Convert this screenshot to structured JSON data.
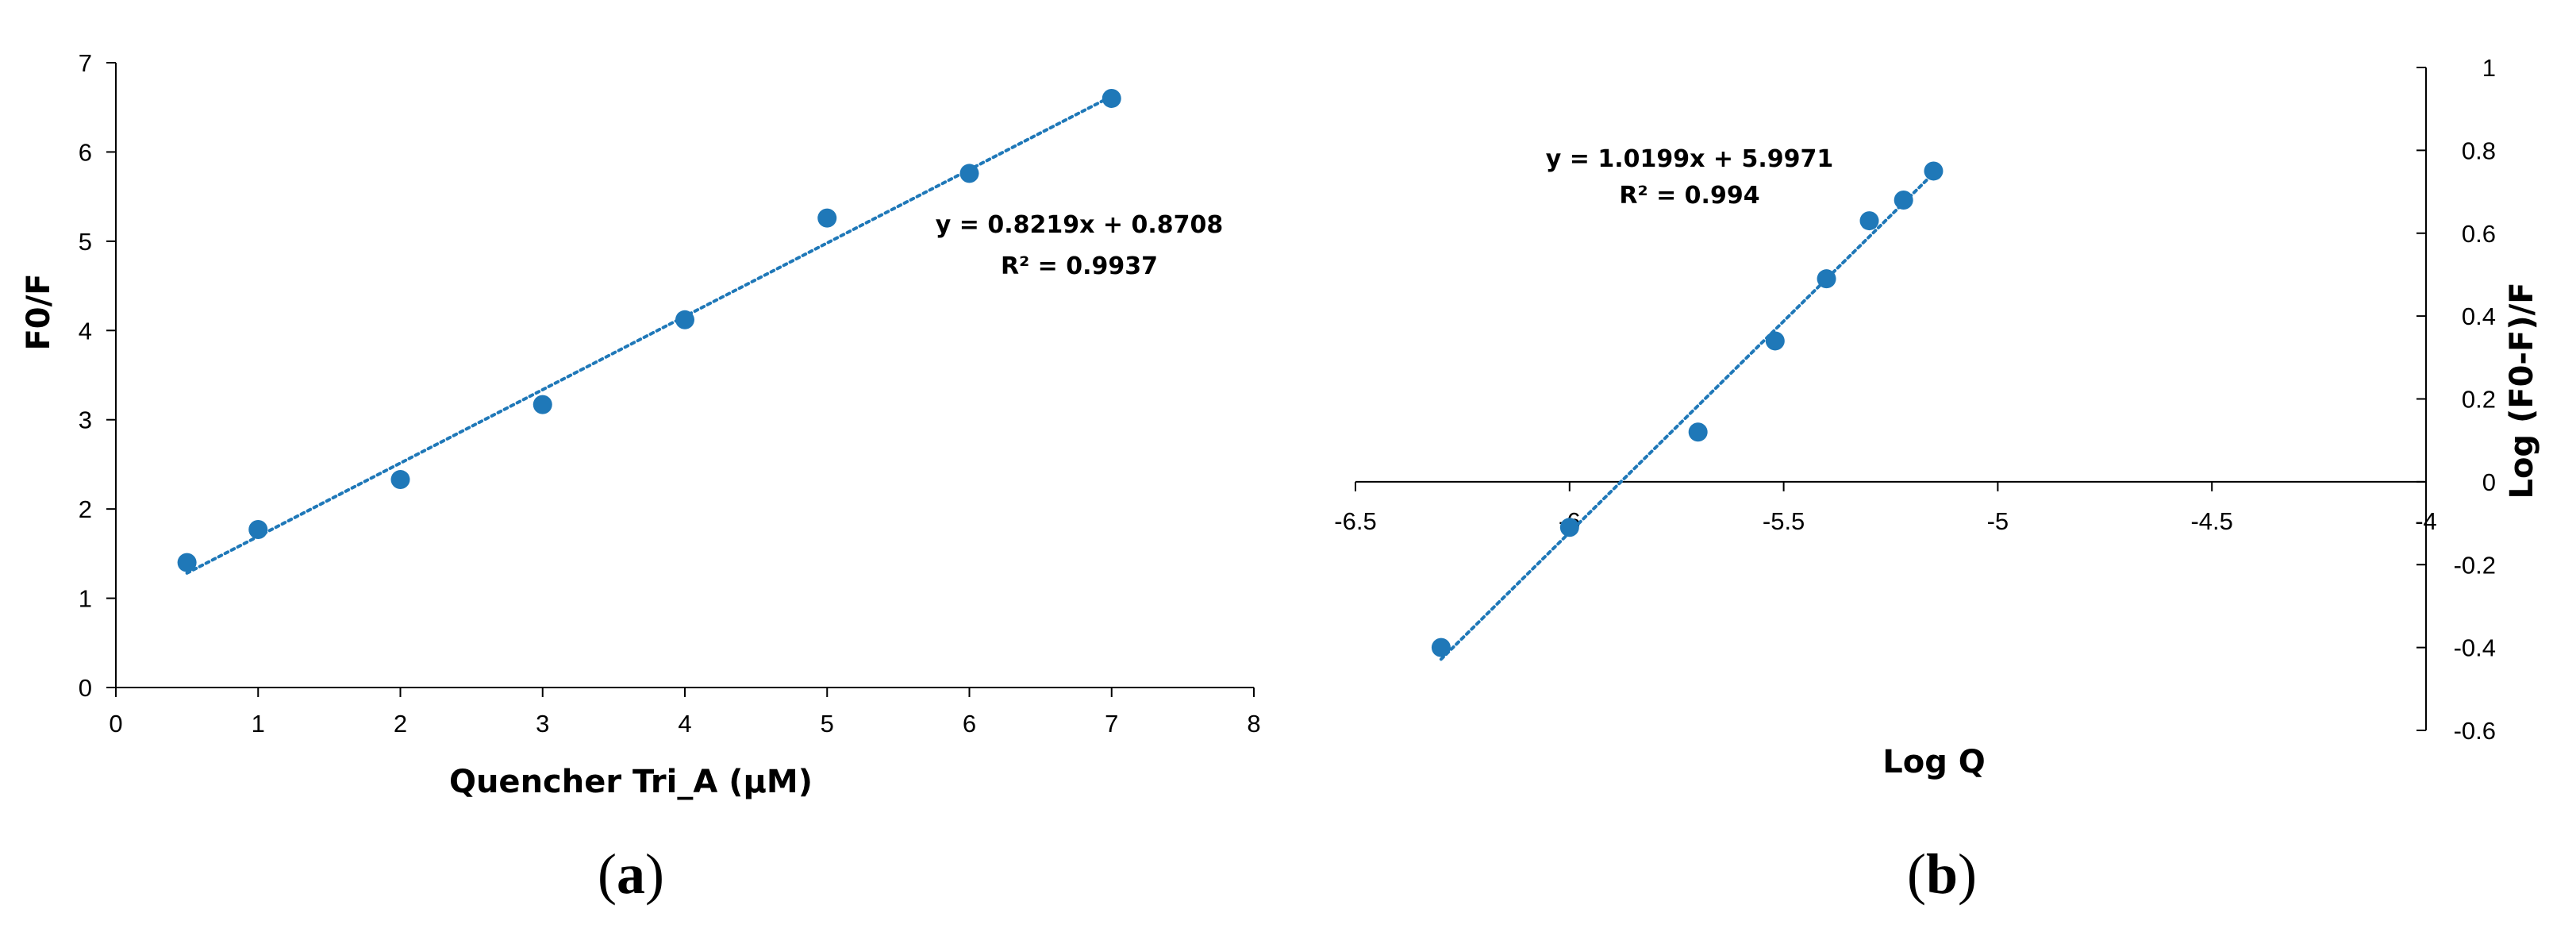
{
  "chart_data": [
    {
      "type": "scatter",
      "panel_label": "(a)",
      "panel_letter": "a",
      "xlabel": "Quencher Tri_A (µM)",
      "ylabel": "F0/F",
      "xlim": [
        0,
        8
      ],
      "ylim": [
        0,
        7
      ],
      "xticks": [
        "0",
        "1",
        "2",
        "3",
        "4",
        "5",
        "6",
        "7",
        "8"
      ],
      "yticks": [
        "0",
        "1",
        "2",
        "3",
        "4",
        "5",
        "6",
        "7"
      ],
      "grid": false,
      "marker_color": "#1f78b8",
      "trendline_color": "#1f78b8",
      "series": [
        {
          "x": [
            0.5,
            1,
            2,
            3,
            4,
            5,
            6,
            7
          ],
          "y": [
            1.4,
            1.77,
            2.33,
            3.17,
            4.12,
            5.26,
            5.76,
            6.6
          ]
        }
      ],
      "trendline": {
        "slope": 0.8219,
        "intercept": 0.8708,
        "x_range": [
          0.5,
          7
        ],
        "equation": "y = 0.8219x + 0.8708",
        "r2": "R² = 0.9937"
      }
    },
    {
      "type": "scatter",
      "panel_label": "(b)",
      "panel_letter": "b",
      "xlabel": "Log Q",
      "ylabel": "Log (F0-F)/F",
      "xlim": [
        -6.5,
        -4
      ],
      "ylim": [
        -0.6,
        1
      ],
      "xticks": [
        "-6.5",
        "-6",
        "-5.5",
        "-5",
        "-4.5",
        "-4"
      ],
      "yticks": [
        "-0.6",
        "-0.4",
        "-0.2",
        "0",
        "0.2",
        "0.4",
        "0.6",
        "0.8",
        "1"
      ],
      "y_axis_side": "right",
      "x_axis_at_y": 0,
      "grid": false,
      "marker_color": "#1f78b8",
      "trendline_color": "#1f78b8",
      "series": [
        {
          "x": [
            -6.3,
            -6.0,
            -5.7,
            -5.52,
            -5.4,
            -5.3,
            -5.22,
            -5.15
          ],
          "y": [
            -0.4,
            -0.11,
            0.12,
            0.34,
            0.49,
            0.63,
            0.68,
            0.75
          ]
        }
      ],
      "trendline": {
        "slope": 1.0199,
        "intercept": 5.9971,
        "x_range": [
          -6.3,
          -5.15
        ],
        "equation": "y = 1.0199x + 5.9971",
        "r2": "R² = 0.994"
      }
    }
  ]
}
